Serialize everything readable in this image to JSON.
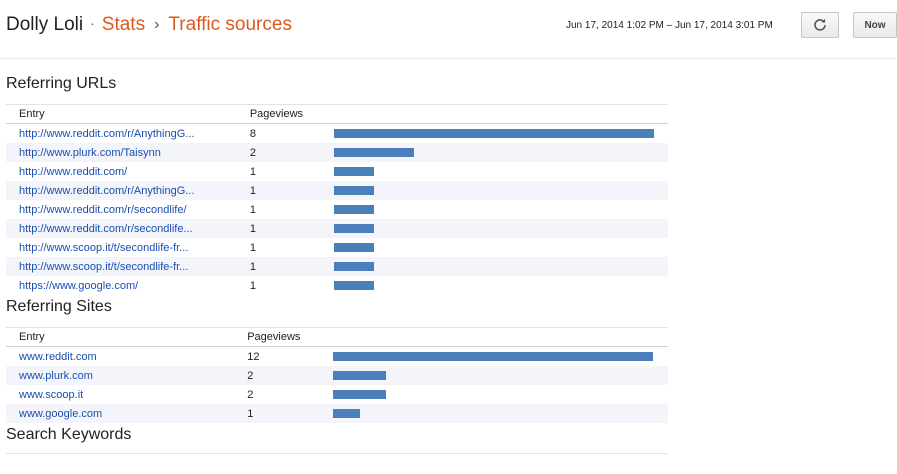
{
  "header": {
    "blog_name": "Dolly Loli",
    "sep": "·",
    "stats_link": "Stats",
    "arrow": "›",
    "current_page": "Traffic sources",
    "date_range": "Jun 17, 2014 1:02 PM – Jun 17, 2014 3:01 PM",
    "now_label": "Now"
  },
  "referring_urls": {
    "title": "Referring URLs",
    "col_entry": "Entry",
    "col_pageviews": "Pageviews",
    "max": 8,
    "rows": [
      {
        "entry": "http://www.reddit.com/r/AnythingG...",
        "views": 8
      },
      {
        "entry": "http://www.plurk.com/Taisynn",
        "views": 2
      },
      {
        "entry": "http://www.reddit.com/",
        "views": 1
      },
      {
        "entry": "http://www.reddit.com/r/AnythingG...",
        "views": 1
      },
      {
        "entry": "http://www.reddit.com/r/secondlife/",
        "views": 1
      },
      {
        "entry": "http://www.reddit.com/r/secondlife...",
        "views": 1
      },
      {
        "entry": "http://www.scoop.it/t/secondlife-fr...",
        "views": 1
      },
      {
        "entry": "http://www.scoop.it/t/secondlife-fr...",
        "views": 1
      },
      {
        "entry": "https://www.google.com/",
        "views": 1
      }
    ]
  },
  "referring_sites": {
    "title": "Referring Sites",
    "col_entry": "Entry",
    "col_pageviews": "Pageviews",
    "max": 12,
    "rows": [
      {
        "entry": "www.reddit.com",
        "views": 12
      },
      {
        "entry": "www.plurk.com",
        "views": 2
      },
      {
        "entry": "www.scoop.it",
        "views": 2
      },
      {
        "entry": "www.google.com",
        "views": 1
      }
    ]
  },
  "search_keywords": {
    "title": "Search Keywords"
  },
  "colors": {
    "accent": "#dd5a1d",
    "link": "#1a4eb0",
    "bar": "#4a7fbb",
    "row_alt": "#f3f5fa"
  }
}
